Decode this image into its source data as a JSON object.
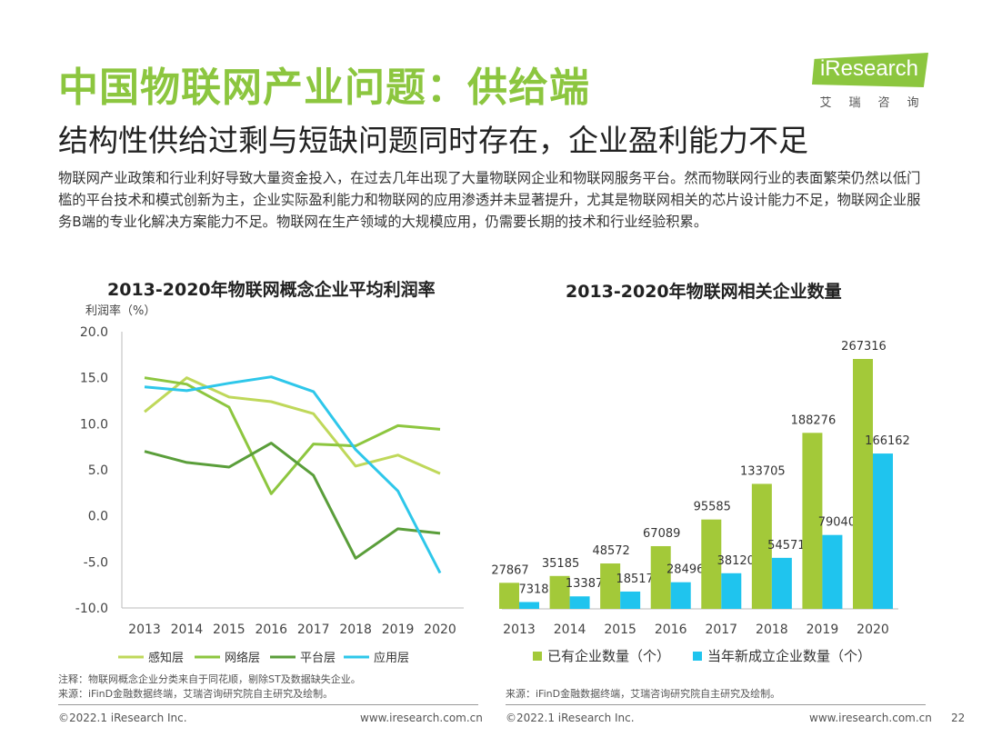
{
  "header": {
    "title": "中国物联网产业问题：供给端",
    "subtitle": "结构性供给过剩与短缺问题同时存在，企业盈利能力不足",
    "body": "物联网产业政策和行业利好导致大量资金投入，在过去几年出现了大量物联网企业和物联网服务平台。然而物联网行业的表面繁荣仍然以低门槛的平台技术和模式创新为主，企业实际盈利能力和物联网的应用渗透并未显著提升，尤其是物联网相关的芯片设计能力不足，物联网企业服务B端的专业化解决方案能力不足。物联网在生产领域的大规模应用，仍需要长期的技术和行业经验积累。"
  },
  "logo": {
    "text": "iResearch",
    "sub": [
      "艾",
      "瑞",
      "咨",
      "询"
    ],
    "color": "#8cc63f"
  },
  "chart_data": [
    {
      "type": "line",
      "title": "2013-2020年物联网概念企业平均利润率",
      "ylabel": "利润率（%）",
      "xlabel": "",
      "ylim": [
        -10,
        20
      ],
      "yticks": [
        "20.0",
        "15.0",
        "10.0",
        "5.0",
        "0.0",
        "-5.0",
        "-10.0"
      ],
      "x": [
        "2013",
        "2014",
        "2015",
        "2016",
        "2017",
        "2018",
        "2019",
        "2020"
      ],
      "series": [
        {
          "name": "感知层",
          "color": "#bfd85a",
          "values": [
            11.3,
            15.0,
            12.9,
            12.4,
            11.1,
            5.4,
            6.6,
            4.6
          ]
        },
        {
          "name": "网络层",
          "color": "#8dc63f",
          "values": [
            15.0,
            14.3,
            11.8,
            2.4,
            7.8,
            7.6,
            9.8,
            9.4
          ]
        },
        {
          "name": "平台层",
          "color": "#5a9e3a",
          "values": [
            7.0,
            5.8,
            5.3,
            7.9,
            4.4,
            -4.6,
            -1.4,
            -1.9
          ]
        },
        {
          "name": "应用层",
          "color": "#2ec7ea",
          "values": [
            14.0,
            13.6,
            14.4,
            15.1,
            13.5,
            7.2,
            2.7,
            -6.2
          ]
        }
      ]
    },
    {
      "type": "bar",
      "title": "2013-2020年物联网相关企业数量",
      "categories": [
        "2013",
        "2014",
        "2015",
        "2016",
        "2017",
        "2018",
        "2019",
        "2020"
      ],
      "series": [
        {
          "name": "已有企业数量（个）",
          "color": "#a3c939",
          "values": [
            27867,
            35185,
            48572,
            67089,
            95585,
            133705,
            188276,
            267316
          ]
        },
        {
          "name": "当年新成立企业数量（个）",
          "color": "#1fc4ee",
          "values": [
            7318,
            13387,
            18517,
            28496,
            38120,
            54571,
            79040,
            166162
          ]
        }
      ],
      "ylim": [
        0,
        290000
      ]
    }
  ],
  "notes": {
    "left": [
      "注释：物联网概念企业分类来自于同花顺，剔除ST及数据缺失企业。",
      "来源：iFinD金融数据终端，艾瑞咨询研究院自主研究及绘制。"
    ],
    "right": "来源：iFinD金融数据终端，艾瑞咨询研究院自主研究及绘制。"
  },
  "footer": {
    "copyright_left": "©2022.1 iResearch Inc.",
    "url_left": "www.iresearch.com.cn",
    "copyright_right": "©2022.1 iResearch Inc.",
    "url_right": "www.iresearch.com.cn",
    "page": "22"
  }
}
